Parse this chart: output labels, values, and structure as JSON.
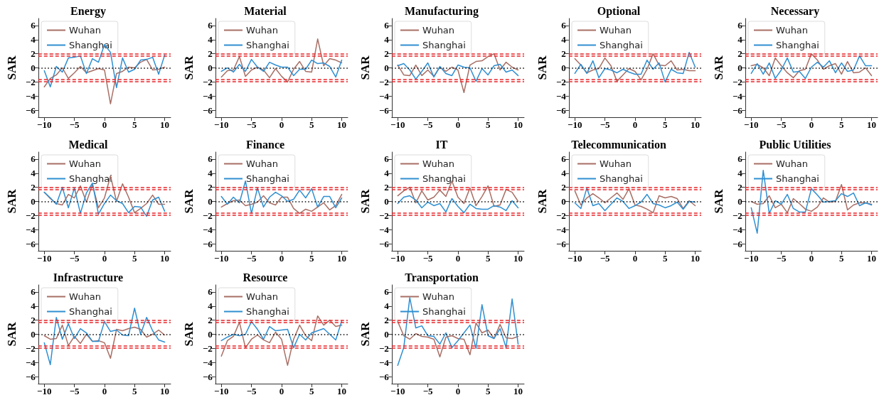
{
  "chart_data": [
    {
      "type": "line",
      "title": "Energy",
      "ylabel": "SAR",
      "x": [
        -10,
        -9,
        -8,
        -7,
        -6,
        -5,
        -4,
        -3,
        -2,
        -1,
        0,
        1,
        2,
        3,
        4,
        5,
        6,
        7,
        8,
        9,
        10
      ],
      "xlim": [
        -11,
        11
      ],
      "xticks": [
        -10,
        -5,
        0,
        5,
        10
      ],
      "ylim": [
        -7,
        7
      ],
      "yticks": [
        -6,
        -4,
        -2,
        0,
        2,
        4,
        6
      ],
      "legend": "top left",
      "grid": false,
      "marker": "none",
      "line_style": "solid",
      "ref_lines": [
        {
          "axis": "y",
          "value": 0,
          "color": "#000000",
          "line_style": "dotted"
        },
        {
          "axis": "y",
          "value": 1.96,
          "color": "#e8262a",
          "line_style": "dashed"
        },
        {
          "axis": "y",
          "value": 1.65,
          "color": "#e8262a",
          "line_style": "dashed"
        },
        {
          "axis": "y",
          "value": -1.65,
          "color": "#e8262a",
          "line_style": "dashed"
        },
        {
          "axis": "y",
          "value": -1.96,
          "color": "#e8262a",
          "line_style": "dashed"
        }
      ],
      "series": [
        {
          "name": "Wuhan",
          "color": "#a86f65",
          "values": [
            -2.7,
            -1.5,
            -1.0,
            0.0,
            -1.5,
            -0.7,
            0.2,
            -0.7,
            -0.4,
            -0.1,
            -0.3,
            -5.1,
            -0.8,
            -0.5,
            0.1,
            0.0,
            0.8,
            1.2,
            -0.3,
            -0.2,
            0.1
          ]
        },
        {
          "name": "Shanghai",
          "color": "#2f8fd1",
          "values": [
            -0.4,
            -2.7,
            0.2,
            -0.6,
            1.4,
            1.5,
            1.7,
            -0.8,
            1.3,
            0.8,
            3.3,
            2.2,
            -2.8,
            1.4,
            -0.6,
            -0.2,
            1.1,
            1.2,
            1.5,
            -0.9,
            1.8
          ]
        }
      ]
    },
    {
      "type": "line",
      "title": "Material",
      "ylabel": "SAR",
      "x": [
        -10,
        -9,
        -8,
        -7,
        -6,
        -5,
        -4,
        -3,
        -2,
        -1,
        0,
        1,
        2,
        3,
        4,
        5,
        6,
        7,
        8,
        9,
        10
      ],
      "xlim": [
        -11,
        11
      ],
      "xticks": [
        -10,
        -5,
        0,
        5,
        10
      ],
      "ylim": [
        -7,
        7
      ],
      "yticks": [
        -6,
        -4,
        -2,
        0,
        2,
        4,
        6
      ],
      "legend": "top left",
      "grid": false,
      "marker": "none",
      "line_style": "solid",
      "ref_lines": [
        {
          "axis": "y",
          "value": 0,
          "color": "#000000",
          "line_style": "dotted"
        },
        {
          "axis": "y",
          "value": 1.96,
          "color": "#e8262a",
          "line_style": "dashed"
        },
        {
          "axis": "y",
          "value": 1.65,
          "color": "#e8262a",
          "line_style": "dashed"
        },
        {
          "axis": "y",
          "value": -1.65,
          "color": "#e8262a",
          "line_style": "dashed"
        },
        {
          "axis": "y",
          "value": -1.96,
          "color": "#e8262a",
          "line_style": "dashed"
        }
      ],
      "series": [
        {
          "name": "Wuhan",
          "color": "#a86f65",
          "values": [
            -1.3,
            -0.4,
            -0.3,
            1.6,
            -1.2,
            -0.3,
            0.1,
            -0.3,
            -1.4,
            -0.1,
            -1.2,
            -2.0,
            -0.2,
            0.9,
            -0.5,
            -0.6,
            4.1,
            0.3,
            1.3,
            1.1,
            0.7
          ]
        },
        {
          "name": "Shanghai",
          "color": "#2f8fd1",
          "values": [
            -0.5,
            0.0,
            -0.6,
            0.5,
            -0.5,
            1.2,
            0.1,
            -0.5,
            0.8,
            0.4,
            0.1,
            0.1,
            -1.1,
            -0.2,
            -0.2,
            1.1,
            0.6,
            0.7,
            0.2,
            -1.3,
            1.1
          ]
        }
      ]
    },
    {
      "type": "line",
      "title": "Manufacturing",
      "ylabel": "SAR",
      "x": [
        -10,
        -9,
        -8,
        -7,
        -6,
        -5,
        -4,
        -3,
        -2,
        -1,
        0,
        1,
        2,
        3,
        4,
        5,
        6,
        7,
        8,
        9,
        10
      ],
      "xlim": [
        -11,
        11
      ],
      "xticks": [
        -10,
        -5,
        0,
        5,
        10
      ],
      "ylim": [
        -7,
        7
      ],
      "yticks": [
        -6,
        -4,
        -2,
        0,
        2,
        4,
        6
      ],
      "legend": "top left",
      "grid": false,
      "marker": "none",
      "line_style": "solid",
      "ref_lines": [
        {
          "axis": "y",
          "value": 0,
          "color": "#000000",
          "line_style": "dotted"
        },
        {
          "axis": "y",
          "value": 1.96,
          "color": "#e8262a",
          "line_style": "dashed"
        },
        {
          "axis": "y",
          "value": 1.65,
          "color": "#e8262a",
          "line_style": "dashed"
        },
        {
          "axis": "y",
          "value": -1.65,
          "color": "#e8262a",
          "line_style": "dashed"
        },
        {
          "axis": "y",
          "value": -1.96,
          "color": "#e8262a",
          "line_style": "dashed"
        }
      ],
      "series": [
        {
          "name": "Wuhan",
          "color": "#a86f65",
          "values": [
            0.4,
            -1.0,
            -1.1,
            0.4,
            -1.1,
            -0.3,
            -1.2,
            0.1,
            -0.5,
            0.1,
            -0.3,
            -3.5,
            0.4,
            0.9,
            1.0,
            1.6,
            2.0,
            -0.3,
            0.8,
            0.1,
            -0.3
          ]
        },
        {
          "name": "Shanghai",
          "color": "#2f8fd1",
          "values": [
            0.3,
            0.6,
            -0.3,
            -1.6,
            -0.5,
            0.7,
            -1.3,
            0.2,
            -0.8,
            -1.1,
            0.4,
            0.1,
            0.0,
            -1.9,
            -0.1,
            -1.0,
            0.3,
            0.5,
            -0.6,
            -0.3,
            -1.1
          ]
        }
      ]
    },
    {
      "type": "line",
      "title": "Optional",
      "ylabel": "SAR",
      "x": [
        -10,
        -9,
        -8,
        -7,
        -6,
        -5,
        -4,
        -3,
        -2,
        -1,
        0,
        1,
        2,
        3,
        4,
        5,
        6,
        7,
        8,
        9,
        10
      ],
      "xlim": [
        -11,
        11
      ],
      "xticks": [
        -10,
        -5,
        0,
        5,
        10
      ],
      "ylim": [
        -7,
        7
      ],
      "yticks": [
        -6,
        -4,
        -2,
        0,
        2,
        4,
        6
      ],
      "legend": "top left",
      "grid": false,
      "marker": "none",
      "line_style": "solid",
      "ref_lines": [
        {
          "axis": "y",
          "value": 0,
          "color": "#000000",
          "line_style": "dotted"
        },
        {
          "axis": "y",
          "value": 1.96,
          "color": "#e8262a",
          "line_style": "dashed"
        },
        {
          "axis": "y",
          "value": 1.65,
          "color": "#e8262a",
          "line_style": "dashed"
        },
        {
          "axis": "y",
          "value": -1.65,
          "color": "#e8262a",
          "line_style": "dashed"
        },
        {
          "axis": "y",
          "value": -1.96,
          "color": "#e8262a",
          "line_style": "dashed"
        }
      ],
      "series": [
        {
          "name": "Wuhan",
          "color": "#a86f65",
          "values": [
            1.3,
            0.4,
            -0.7,
            -0.3,
            -0.1,
            1.4,
            0.3,
            -1.9,
            -1.0,
            -0.1,
            -0.5,
            -1.7,
            -0.2,
            2.0,
            0.4,
            0.3,
            1.0,
            -0.3,
            -0.2,
            -0.4,
            -0.4
          ]
        },
        {
          "name": "Shanghai",
          "color": "#2f8fd1",
          "values": [
            -0.8,
            0.5,
            -0.8,
            1.0,
            -1.4,
            -0.1,
            -0.3,
            -0.7,
            -0.2,
            -0.6,
            -0.9,
            -0.9,
            1.1,
            -0.2,
            0.7,
            -2.0,
            -0.2,
            -0.7,
            -0.8,
            2.2,
            0.1
          ]
        }
      ]
    },
    {
      "type": "line",
      "title": "Necessary",
      "ylabel": "SAR",
      "x": [
        -10,
        -9,
        -8,
        -7,
        -6,
        -5,
        -4,
        -3,
        -2,
        -1,
        0,
        1,
        2,
        3,
        4,
        5,
        6,
        7,
        8,
        9,
        10
      ],
      "xlim": [
        -11,
        11
      ],
      "xticks": [
        -10,
        -5,
        0,
        5,
        10
      ],
      "ylim": [
        -7,
        7
      ],
      "yticks": [
        -6,
        -4,
        -2,
        0,
        2,
        4,
        6
      ],
      "legend": "top left",
      "grid": false,
      "marker": "none",
      "line_style": "solid",
      "ref_lines": [
        {
          "axis": "y",
          "value": 0,
          "color": "#000000",
          "line_style": "dotted"
        },
        {
          "axis": "y",
          "value": 1.96,
          "color": "#e8262a",
          "line_style": "dashed"
        },
        {
          "axis": "y",
          "value": 1.65,
          "color": "#e8262a",
          "line_style": "dashed"
        },
        {
          "axis": "y",
          "value": -1.65,
          "color": "#e8262a",
          "line_style": "dashed"
        },
        {
          "axis": "y",
          "value": -1.96,
          "color": "#e8262a",
          "line_style": "dashed"
        }
      ],
      "series": [
        {
          "name": "Wuhan",
          "color": "#a86f65",
          "values": [
            0.3,
            0.5,
            0.0,
            -1.1,
            1.4,
            0.3,
            -0.7,
            -1.4,
            -0.4,
            -0.2,
            2.0,
            1.1,
            -0.2,
            0.3,
            0.6,
            -0.9,
            0.9,
            -0.7,
            -0.6,
            0.0,
            -1.1
          ]
        },
        {
          "name": "Shanghai",
          "color": "#2f8fd1",
          "values": [
            -0.8,
            0.6,
            -0.9,
            0.7,
            -1.5,
            -0.3,
            1.4,
            -0.6,
            -0.5,
            -1.5,
            0.1,
            0.8,
            0.1,
            1.0,
            -0.7,
            0.7,
            -0.5,
            -0.3,
            1.7,
            0.3,
            0.3
          ]
        }
      ]
    },
    {
      "type": "line",
      "title": "Medical",
      "ylabel": "SAR",
      "x": [
        -10,
        -9,
        -8,
        -7,
        -6,
        -5,
        -4,
        -3,
        -2,
        -1,
        0,
        1,
        2,
        3,
        4,
        5,
        6,
        7,
        8,
        9,
        10
      ],
      "xlim": [
        -11,
        11
      ],
      "xticks": [
        -10,
        -5,
        0,
        5,
        10
      ],
      "ylim": [
        -7,
        7
      ],
      "yticks": [
        -6,
        -4,
        -2,
        0,
        2,
        4,
        6
      ],
      "legend": "top left",
      "grid": false,
      "marker": "none",
      "line_style": "solid",
      "ref_lines": [
        {
          "axis": "y",
          "value": 0,
          "color": "#000000",
          "line_style": "dotted"
        },
        {
          "axis": "y",
          "value": 1.96,
          "color": "#e8262a",
          "line_style": "dashed"
        },
        {
          "axis": "y",
          "value": 1.65,
          "color": "#e8262a",
          "line_style": "dashed"
        },
        {
          "axis": "y",
          "value": -1.65,
          "color": "#e8262a",
          "line_style": "dashed"
        },
        {
          "axis": "y",
          "value": -1.96,
          "color": "#e8262a",
          "line_style": "dashed"
        }
      ],
      "series": [
        {
          "name": "Wuhan",
          "color": "#a86f65",
          "values": [
            1.3,
            0.4,
            -0.3,
            -0.5,
            1.0,
            0.5,
            2.2,
            -0.1,
            2.4,
            -0.9,
            0.5,
            3.6,
            0.0,
            2.5,
            0.6,
            -1.6,
            -1.0,
            -0.3,
            0.9,
            -0.4,
            -0.4
          ]
        },
        {
          "name": "Shanghai",
          "color": "#2f8fd1",
          "values": [
            1.3,
            0.5,
            -0.4,
            2.0,
            -0.9,
            1.9,
            -1.7,
            1.2,
            2.6,
            -1.8,
            -0.3,
            0.9,
            0.1,
            -0.3,
            -1.6,
            -0.7,
            -0.8,
            -2.1,
            0.2,
            0.6,
            -1.4
          ]
        }
      ]
    },
    {
      "type": "line",
      "title": "Finance",
      "ylabel": "SAR",
      "x": [
        -10,
        -9,
        -8,
        -7,
        -6,
        -5,
        -4,
        -3,
        -2,
        -1,
        0,
        1,
        2,
        3,
        4,
        5,
        6,
        7,
        8,
        9,
        10
      ],
      "xlim": [
        -11,
        11
      ],
      "xticks": [
        -10,
        -5,
        0,
        5,
        10
      ],
      "ylim": [
        -7,
        7
      ],
      "yticks": [
        -6,
        -4,
        -2,
        0,
        2,
        4,
        6
      ],
      "legend": "top left",
      "grid": false,
      "marker": "none",
      "line_style": "solid",
      "ref_lines": [
        {
          "axis": "y",
          "value": 0,
          "color": "#000000",
          "line_style": "dotted"
        },
        {
          "axis": "y",
          "value": 1.96,
          "color": "#e8262a",
          "line_style": "dashed"
        },
        {
          "axis": "y",
          "value": 1.65,
          "color": "#e8262a",
          "line_style": "dashed"
        },
        {
          "axis": "y",
          "value": -1.65,
          "color": "#e8262a",
          "line_style": "dashed"
        },
        {
          "axis": "y",
          "value": -1.96,
          "color": "#e8262a",
          "line_style": "dashed"
        }
      ],
      "series": [
        {
          "name": "Wuhan",
          "color": "#a86f65",
          "values": [
            -0.8,
            -0.3,
            0.1,
            0.2,
            -0.6,
            -0.4,
            -0.1,
            0.8,
            -0.2,
            -0.5,
            0.6,
            0.6,
            -1.0,
            -1.7,
            -1.1,
            -1.4,
            -0.8,
            -0.2,
            -1.2,
            -0.6,
            1.0
          ]
        },
        {
          "name": "Shanghai",
          "color": "#2f8fd1",
          "values": [
            0.7,
            -0.4,
            0.6,
            -0.2,
            2.9,
            -1.7,
            1.9,
            -0.8,
            0.6,
            1.3,
            0.8,
            0.0,
            0.3,
            1.6,
            0.5,
            1.8,
            -0.8,
            0.7,
            0.7,
            -0.9,
            0.5
          ]
        }
      ]
    },
    {
      "type": "line",
      "title": "IT",
      "ylabel": "SAR",
      "x": [
        -10,
        -9,
        -8,
        -7,
        -6,
        -5,
        -4,
        -3,
        -2,
        -1,
        0,
        1,
        2,
        3,
        4,
        5,
        6,
        7,
        8,
        9,
        10
      ],
      "xlim": [
        -11,
        11
      ],
      "xticks": [
        -10,
        -5,
        0,
        5,
        10
      ],
      "ylim": [
        -7,
        7
      ],
      "yticks": [
        -6,
        -4,
        -2,
        0,
        2,
        4,
        6
      ],
      "legend": "top left",
      "grid": false,
      "marker": "none",
      "line_style": "solid",
      "ref_lines": [
        {
          "axis": "y",
          "value": 0,
          "color": "#000000",
          "line_style": "dotted"
        },
        {
          "axis": "y",
          "value": 1.96,
          "color": "#e8262a",
          "line_style": "dashed"
        },
        {
          "axis": "y",
          "value": 1.65,
          "color": "#e8262a",
          "line_style": "dashed"
        },
        {
          "axis": "y",
          "value": -1.65,
          "color": "#e8262a",
          "line_style": "dashed"
        },
        {
          "axis": "y",
          "value": -1.96,
          "color": "#e8262a",
          "line_style": "dashed"
        }
      ],
      "series": [
        {
          "name": "Wuhan",
          "color": "#a86f65",
          "values": [
            0.8,
            1.5,
            2.0,
            -0.2,
            1.5,
            0.2,
            0.6,
            1.6,
            0.7,
            2.9,
            0.6,
            -0.3,
            1.9,
            -0.6,
            0.7,
            2.2,
            -0.7,
            -0.5,
            1.7,
            1.3,
            0.0
          ]
        },
        {
          "name": "Shanghai",
          "color": "#2f8fd1",
          "values": [
            -0.3,
            0.6,
            0.8,
            0.2,
            -0.9,
            -0.1,
            -0.6,
            -0.3,
            -1.5,
            0.4,
            -0.7,
            -1.6,
            -0.4,
            -1.0,
            -1.1,
            -1.1,
            -0.6,
            -0.8,
            -1.3,
            0.1,
            -0.9
          ]
        }
      ]
    },
    {
      "type": "line",
      "title": "Telecommunication",
      "ylabel": "SAR",
      "x": [
        -10,
        -9,
        -8,
        -7,
        -6,
        -5,
        -4,
        -3,
        -2,
        -1,
        0,
        1,
        2,
        3,
        4,
        5,
        6,
        7,
        8,
        9,
        10
      ],
      "xlim": [
        -11,
        11
      ],
      "xticks": [
        -10,
        -5,
        0,
        5,
        10
      ],
      "ylim": [
        -7,
        7
      ],
      "yticks": [
        -6,
        -4,
        -2,
        0,
        2,
        4,
        6
      ],
      "legend": "top left",
      "grid": false,
      "marker": "none",
      "line_style": "solid",
      "ref_lines": [
        {
          "axis": "y",
          "value": 0,
          "color": "#000000",
          "line_style": "dotted"
        },
        {
          "axis": "y",
          "value": 1.96,
          "color": "#e8262a",
          "line_style": "dashed"
        },
        {
          "axis": "y",
          "value": 1.65,
          "color": "#e8262a",
          "line_style": "dashed"
        },
        {
          "axis": "y",
          "value": -1.65,
          "color": "#e8262a",
          "line_style": "dashed"
        },
        {
          "axis": "y",
          "value": -1.96,
          "color": "#e8262a",
          "line_style": "dashed"
        }
      ],
      "series": [
        {
          "name": "Wuhan",
          "color": "#a86f65",
          "values": [
            1.5,
            -0.5,
            0.5,
            1.1,
            0.5,
            -0.2,
            0.5,
            1.2,
            0.3,
            1.8,
            -0.5,
            -0.7,
            -1.1,
            -1.6,
            0.8,
            0.5,
            0.7,
            0.4,
            -1.0,
            0.1,
            -0.6
          ]
        },
        {
          "name": "Shanghai",
          "color": "#2f8fd1",
          "values": [
            -0.2,
            -1.0,
            1.9,
            -0.6,
            -0.3,
            -1.3,
            -0.4,
            0.5,
            0.0,
            -1.0,
            -0.6,
            -0.1,
            1.0,
            -0.3,
            -0.5,
            -0.9,
            -0.6,
            -0.1,
            -1.1,
            0.0,
            -0.1
          ]
        }
      ]
    },
    {
      "type": "line",
      "title": "Public Utilities",
      "ylabel": "SAR",
      "x": [
        -10,
        -9,
        -8,
        -7,
        -6,
        -5,
        -4,
        -3,
        -2,
        -1,
        0,
        1,
        2,
        3,
        4,
        5,
        6,
        7,
        8,
        9,
        10
      ],
      "xlim": [
        -11,
        11
      ],
      "xticks": [
        -10,
        -5,
        0,
        5,
        10
      ],
      "ylim": [
        -7,
        7
      ],
      "yticks": [
        -6,
        -4,
        -2,
        0,
        2,
        4,
        6
      ],
      "legend": "top left",
      "grid": false,
      "marker": "none",
      "line_style": "solid",
      "ref_lines": [
        {
          "axis": "y",
          "value": 0,
          "color": "#000000",
          "line_style": "dotted"
        },
        {
          "axis": "y",
          "value": 1.96,
          "color": "#e8262a",
          "line_style": "dashed"
        },
        {
          "axis": "y",
          "value": 1.65,
          "color": "#e8262a",
          "line_style": "dashed"
        },
        {
          "axis": "y",
          "value": -1.65,
          "color": "#e8262a",
          "line_style": "dashed"
        },
        {
          "axis": "y",
          "value": -1.96,
          "color": "#e8262a",
          "line_style": "dashed"
        }
      ],
      "series": [
        {
          "name": "Wuhan",
          "color": "#a86f65",
          "values": [
            0.0,
            -0.4,
            -0.3,
            0.8,
            -0.9,
            -0.4,
            -1.6,
            0.4,
            -0.3,
            -1.1,
            -1.4,
            -0.8,
            0.5,
            -0.1,
            0.0,
            2.4,
            -1.2,
            -0.5,
            -0.2,
            -0.2,
            -0.4
          ]
        },
        {
          "name": "Shanghai",
          "color": "#2f8fd1",
          "values": [
            -0.9,
            -4.5,
            4.4,
            -1.7,
            0.1,
            -0.4,
            1.0,
            -1.0,
            -1.5,
            -1.5,
            1.8,
            0.9,
            -0.1,
            0.0,
            0.1,
            1.1,
            0.7,
            1.2,
            -0.6,
            -0.2,
            -0.5
          ]
        }
      ]
    },
    {
      "type": "line",
      "title": "Infrastructure",
      "ylabel": "SAR",
      "x": [
        -10,
        -9,
        -8,
        -7,
        -6,
        -5,
        -4,
        -3,
        -2,
        -1,
        0,
        1,
        2,
        3,
        4,
        5,
        6,
        7,
        8,
        9,
        10
      ],
      "xlim": [
        -11,
        11
      ],
      "xticks": [
        -10,
        -5,
        0,
        5,
        10
      ],
      "ylim": [
        -7,
        7
      ],
      "yticks": [
        -6,
        -4,
        -2,
        0,
        2,
        4,
        6
      ],
      "legend": "top left",
      "grid": false,
      "marker": "none",
      "line_style": "solid",
      "ref_lines": [
        {
          "axis": "y",
          "value": 0,
          "color": "#000000",
          "line_style": "dotted"
        },
        {
          "axis": "y",
          "value": 1.96,
          "color": "#e8262a",
          "line_style": "dashed"
        },
        {
          "axis": "y",
          "value": 1.65,
          "color": "#e8262a",
          "line_style": "dashed"
        },
        {
          "axis": "y",
          "value": -1.65,
          "color": "#e8262a",
          "line_style": "dashed"
        },
        {
          "axis": "y",
          "value": -1.96,
          "color": "#e8262a",
          "line_style": "dashed"
        }
      ],
      "series": [
        {
          "name": "Wuhan",
          "color": "#a86f65",
          "values": [
            -0.2,
            -0.7,
            -0.6,
            1.3,
            -1.6,
            -0.3,
            -1.3,
            0.0,
            -1.0,
            -0.9,
            -1.2,
            -3.4,
            0.7,
            0.5,
            0.8,
            1.0,
            0.7,
            -0.4,
            0.0,
            0.6,
            -0.1
          ]
        },
        {
          "name": "Shanghai",
          "color": "#2f8fd1",
          "values": [
            -1.2,
            -4.3,
            2.4,
            -0.7,
            1.5,
            -0.6,
            0.8,
            0.2,
            -1.0,
            -1.0,
            1.8,
            0.4,
            0.6,
            -0.1,
            -0.2,
            3.7,
            0.0,
            2.4,
            0.5,
            -0.8,
            -1.1
          ]
        }
      ]
    },
    {
      "type": "line",
      "title": "Resource",
      "ylabel": "SAR",
      "x": [
        -10,
        -9,
        -8,
        -7,
        -6,
        -5,
        -4,
        -3,
        -2,
        -1,
        0,
        1,
        2,
        3,
        4,
        5,
        6,
        7,
        8,
        9,
        10
      ],
      "xlim": [
        -11,
        11
      ],
      "xticks": [
        -10,
        -5,
        0,
        5,
        10
      ],
      "ylim": [
        -7,
        7
      ],
      "yticks": [
        -6,
        -4,
        -2,
        0,
        2,
        4,
        6
      ],
      "legend": "top left",
      "grid": false,
      "marker": "none",
      "line_style": "solid",
      "ref_lines": [
        {
          "axis": "y",
          "value": 0,
          "color": "#000000",
          "line_style": "dotted"
        },
        {
          "axis": "y",
          "value": 1.96,
          "color": "#e8262a",
          "line_style": "dashed"
        },
        {
          "axis": "y",
          "value": 1.65,
          "color": "#e8262a",
          "line_style": "dashed"
        },
        {
          "axis": "y",
          "value": -1.65,
          "color": "#e8262a",
          "line_style": "dashed"
        },
        {
          "axis": "y",
          "value": -1.96,
          "color": "#e8262a",
          "line_style": "dashed"
        }
      ],
      "series": [
        {
          "name": "Wuhan",
          "color": "#a86f65",
          "values": [
            -3.1,
            -0.9,
            -0.3,
            1.7,
            -1.9,
            -0.7,
            -0.1,
            -0.8,
            -1.2,
            0.3,
            -0.7,
            -4.4,
            -0.7,
            1.3,
            -0.2,
            -0.9,
            2.6,
            1.3,
            2.0,
            1.1,
            1.3
          ]
        },
        {
          "name": "Shanghai",
          "color": "#2f8fd1",
          "values": [
            -0.9,
            -0.4,
            0.0,
            -0.2,
            0.0,
            1.8,
            0.7,
            -0.7,
            1.1,
            0.5,
            0.6,
            0.7,
            -1.9,
            0.0,
            -0.8,
            0.2,
            0.5,
            0.8,
            0.0,
            -0.8,
            1.9
          ]
        }
      ]
    },
    {
      "type": "line",
      "title": "Transportation",
      "ylabel": "SAR",
      "x": [
        -10,
        -9,
        -8,
        -7,
        -6,
        -5,
        -4,
        -3,
        -2,
        -1,
        0,
        1,
        2,
        3,
        4,
        5,
        6,
        7,
        8,
        9,
        10
      ],
      "xlim": [
        -11,
        11
      ],
      "xticks": [
        -10,
        -5,
        0,
        5,
        10
      ],
      "ylim": [
        -7,
        7
      ],
      "yticks": [
        -6,
        -4,
        -2,
        0,
        2,
        4,
        6
      ],
      "legend": "top left",
      "grid": false,
      "marker": "none",
      "line_style": "solid",
      "ref_lines": [
        {
          "axis": "y",
          "value": 0,
          "color": "#000000",
          "line_style": "dotted"
        },
        {
          "axis": "y",
          "value": 1.96,
          "color": "#e8262a",
          "line_style": "dashed"
        },
        {
          "axis": "y",
          "value": 1.65,
          "color": "#e8262a",
          "line_style": "dashed"
        },
        {
          "axis": "y",
          "value": -1.65,
          "color": "#e8262a",
          "line_style": "dashed"
        },
        {
          "axis": "y",
          "value": -1.96,
          "color": "#e8262a",
          "line_style": "dashed"
        }
      ],
      "series": [
        {
          "name": "Wuhan",
          "color": "#a86f65",
          "values": [
            1.8,
            -0.2,
            -0.7,
            0.1,
            -0.3,
            -0.4,
            -0.7,
            -3.2,
            -0.4,
            -0.2,
            -0.6,
            -0.7,
            -2.9,
            1.6,
            0.2,
            0.6,
            -0.6,
            1.4,
            -0.5,
            -0.6,
            -0.3
          ]
        },
        {
          "name": "Shanghai",
          "color": "#2f8fd1",
          "values": [
            -4.4,
            -1.9,
            5.2,
            0.9,
            1.2,
            -0.2,
            -0.3,
            -1.4,
            0.2,
            -1.9,
            -0.9,
            0.2,
            1.3,
            -2.0,
            4.2,
            -0.2,
            -0.6,
            0.8,
            -1.9,
            5.0,
            -1.4
          ]
        }
      ]
    }
  ]
}
